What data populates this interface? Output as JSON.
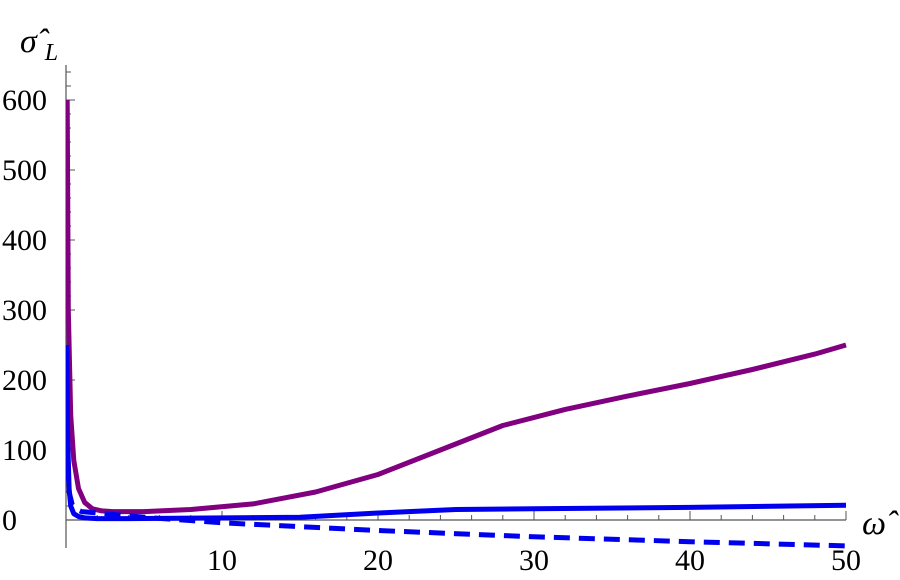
{
  "chart_data": {
    "type": "line",
    "title": "",
    "xlabel": "ω̂",
    "ylabel": "σ̂",
    "ylabel_subscript": "L",
    "xlim": [
      0,
      50
    ],
    "ylim": [
      -40,
      650
    ],
    "x_ticks": [
      10,
      20,
      30,
      40,
      50
    ],
    "x_tick_labels": [
      "10",
      "20",
      "30",
      "40",
      "50"
    ],
    "y_ticks": [
      0,
      100,
      200,
      300,
      400,
      500,
      600
    ],
    "y_tick_labels": [
      "0",
      "100",
      "200",
      "300",
      "400",
      "500",
      "600"
    ],
    "grid": false,
    "series": [
      {
        "color": "#800080",
        "dash": "solid",
        "x": [
          0.08,
          0.15,
          0.3,
          0.5,
          0.8,
          1.2,
          1.7,
          2.3,
          3,
          5,
          8,
          12,
          16,
          20,
          24,
          28,
          32,
          36,
          40,
          44,
          48,
          50
        ],
        "y": [
          600,
          300,
          150,
          85,
          45,
          25,
          16,
          13,
          12,
          12,
          15,
          23,
          40,
          65,
          100,
          135,
          158,
          177,
          195,
          215,
          237,
          250
        ]
      },
      {
        "color": "#0000ee",
        "dash": "solid",
        "x": [
          0.05,
          0.1,
          0.2,
          0.3,
          0.5,
          0.8,
          1.2,
          2,
          4,
          10,
          15,
          20,
          25,
          30,
          40,
          50
        ],
        "y": [
          250,
          120,
          45,
          20,
          9,
          5,
          3,
          2,
          2,
          3,
          4,
          10,
          15,
          16,
          18,
          21
        ]
      },
      {
        "color": "#0000ee",
        "dash": "dashed",
        "x": [
          0.05,
          0.1,
          0.2,
          0.4,
          0.7,
          1,
          1.5,
          2,
          3,
          5,
          10,
          20,
          30,
          40,
          50
        ],
        "y": [
          150,
          80,
          40,
          22,
          15,
          12,
          11,
          10,
          8,
          4,
          -4,
          -15,
          -24,
          -31,
          -37
        ]
      }
    ]
  }
}
